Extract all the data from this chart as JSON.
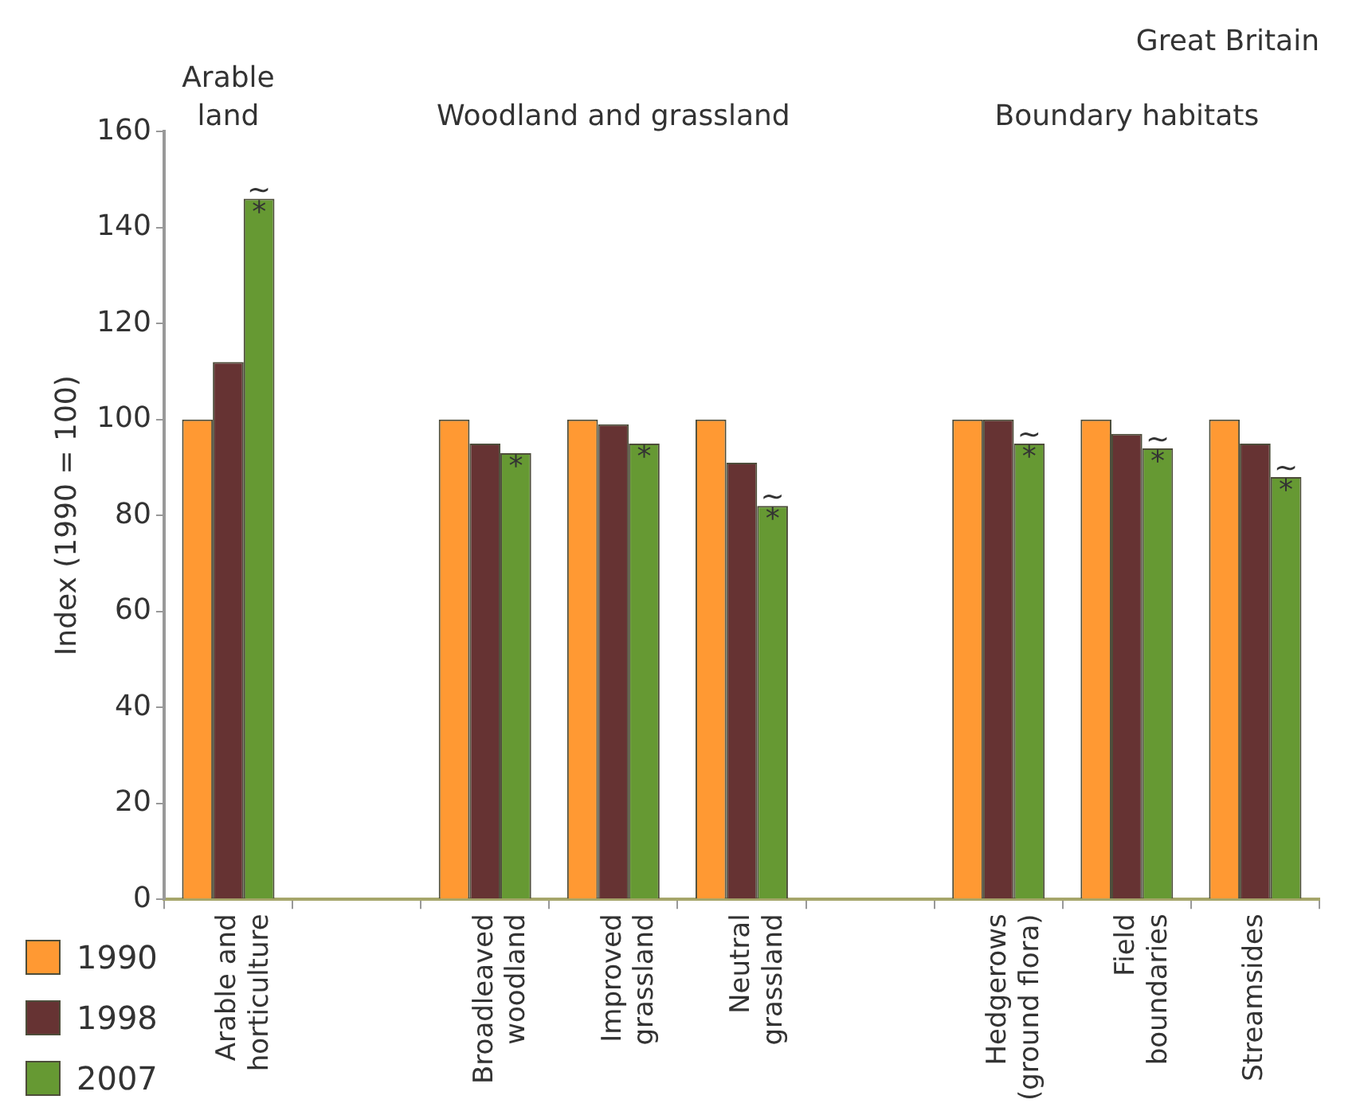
{
  "chart_data": {
    "type": "bar",
    "title": "Great Britain",
    "ylabel": "Index (1990 = 100)",
    "categories": [
      "Arable and horticulture",
      null,
      "Broadleaved woodland",
      "Improved grassland",
      "Neutral grassland",
      null,
      "Hedgerows (ground flora)",
      "Field boundaries",
      "Streamsides"
    ],
    "series": [
      {
        "name": "1990",
        "color": "#ff9933",
        "values": [
          100,
          null,
          100,
          100,
          100,
          null,
          100,
          100,
          100
        ]
      },
      {
        "name": "1998",
        "color": "#663333",
        "values": [
          112,
          null,
          95,
          99,
          91,
          null,
          100,
          97,
          95
        ]
      },
      {
        "name": "2007",
        "color": "#669933",
        "values": [
          146,
          null,
          93,
          95,
          82,
          null,
          95,
          94,
          88
        ]
      }
    ],
    "ylim": [
      0,
      160
    ],
    "yticks": [
      0,
      20,
      40,
      60,
      80,
      100,
      120,
      140,
      160
    ],
    "grid": false,
    "legend": "bottom left",
    "annotations": [
      "Arable land",
      "Woodland and grassland",
      "Boundary habitats",
      {
        "text": "*",
        "x": "Arable and horticulture",
        "y": 146
      },
      {
        "text": "~",
        "x": "Arable and horticulture",
        "y": 146
      },
      {
        "text": "*",
        "x": "Broadleaved woodland",
        "y": 93
      },
      {
        "text": "*",
        "x": "Improved grassland",
        "y": 95
      },
      {
        "text": "*",
        "x": "Neutral grassland",
        "y": 82
      },
      {
        "text": "~",
        "x": "Neutral grassland",
        "y": 82
      },
      {
        "text": "*",
        "x": "Hedgerows (ground flora)",
        "y": 95
      },
      {
        "text": "~",
        "x": "Hedgerows (ground flora)",
        "y": 95
      },
      {
        "text": "*",
        "x": "Field boundaries",
        "y": 94
      },
      {
        "text": "~",
        "x": "Field boundaries",
        "y": 94
      },
      {
        "text": "*",
        "x": "Streamsides",
        "y": 88
      },
      {
        "text": "~",
        "x": "Streamsides",
        "y": 88
      }
    ]
  }
}
